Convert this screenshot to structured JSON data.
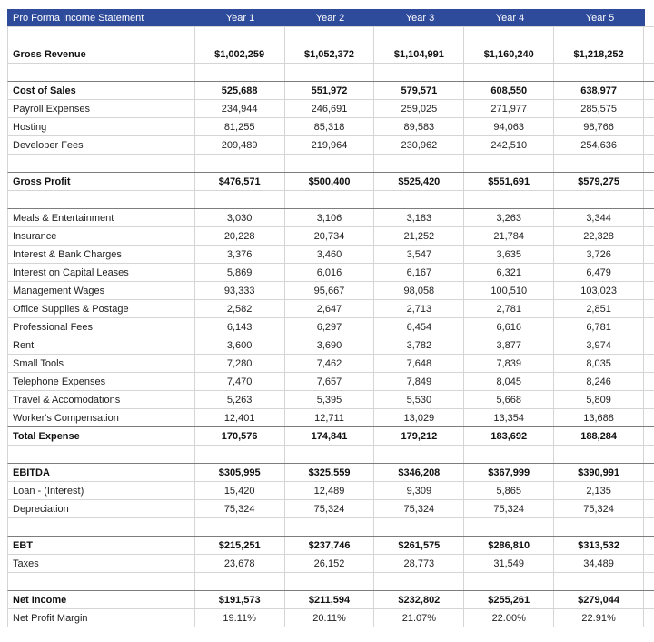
{
  "title": "Pro Forma Income Statement",
  "columns": [
    "Year 1",
    "Year 2",
    "Year 3",
    "Year 4",
    "Year 5"
  ],
  "colors": {
    "header_bg": "#2e4a9b",
    "header_text": "#ffffff",
    "grid": "#d5d5d5",
    "section_border": "#7d7d7d",
    "text": "#1f1f1f"
  },
  "rows": [
    {
      "blank": true
    },
    {
      "label": "Gross Revenue",
      "bold": true,
      "sep": true,
      "values": [
        "$1,002,259",
        "$1,052,372",
        "$1,104,991",
        "$1,160,240",
        "$1,218,252"
      ]
    },
    {
      "blank": true
    },
    {
      "label": "Cost of Sales",
      "bold": true,
      "sep": true,
      "values": [
        "525,688",
        "551,972",
        "579,571",
        "608,550",
        "638,977"
      ]
    },
    {
      "label": "Payroll Expenses",
      "values": [
        "234,944",
        "246,691",
        "259,025",
        "271,977",
        "285,575"
      ]
    },
    {
      "label": "Hosting",
      "values": [
        "81,255",
        "85,318",
        "89,583",
        "94,063",
        "98,766"
      ]
    },
    {
      "label": "Developer Fees",
      "values": [
        "209,489",
        "219,964",
        "230,962",
        "242,510",
        "254,636"
      ]
    },
    {
      "blank": true
    },
    {
      "label": "Gross Profit",
      "bold": true,
      "sep": true,
      "values": [
        "$476,571",
        "$500,400",
        "$525,420",
        "$551,691",
        "$579,275"
      ]
    },
    {
      "blank": true
    },
    {
      "label": "Meals & Entertainment",
      "sep": true,
      "values": [
        "3,030",
        "3,106",
        "3,183",
        "3,263",
        "3,344"
      ]
    },
    {
      "label": "Insurance",
      "values": [
        "20,228",
        "20,734",
        "21,252",
        "21,784",
        "22,328"
      ]
    },
    {
      "label": "Interest & Bank Charges",
      "values": [
        "3,376",
        "3,460",
        "3,547",
        "3,635",
        "3,726"
      ]
    },
    {
      "label": "Interest on Capital Leases",
      "values": [
        "5,869",
        "6,016",
        "6,167",
        "6,321",
        "6,479"
      ]
    },
    {
      "label": "Management Wages",
      "values": [
        "93,333",
        "95,667",
        "98,058",
        "100,510",
        "103,023"
      ]
    },
    {
      "label": "Office Supplies & Postage",
      "values": [
        "2,582",
        "2,647",
        "2,713",
        "2,781",
        "2,851"
      ]
    },
    {
      "label": "Professional Fees",
      "values": [
        "6,143",
        "6,297",
        "6,454",
        "6,616",
        "6,781"
      ]
    },
    {
      "label": "Rent",
      "values": [
        "3,600",
        "3,690",
        "3,782",
        "3,877",
        "3,974"
      ]
    },
    {
      "label": "Small Tools",
      "values": [
        "7,280",
        "7,462",
        "7,648",
        "7,839",
        "8,035"
      ]
    },
    {
      "label": "Telephone Expenses",
      "values": [
        "7,470",
        "7,657",
        "7,849",
        "8,045",
        "8,246"
      ]
    },
    {
      "label": "Travel & Accomodations",
      "values": [
        "5,263",
        "5,395",
        "5,530",
        "5,668",
        "5,809"
      ]
    },
    {
      "label": "Worker's Compensation",
      "values": [
        "12,401",
        "12,711",
        "13,029",
        "13,354",
        "13,688"
      ]
    },
    {
      "label": "Total Expense",
      "bold": true,
      "sep": true,
      "values": [
        "170,576",
        "174,841",
        "179,212",
        "183,692",
        "188,284"
      ]
    },
    {
      "blank": true
    },
    {
      "label": "EBITDA",
      "bold": true,
      "sep": true,
      "values": [
        "$305,995",
        "$325,559",
        "$346,208",
        "$367,999",
        "$390,991"
      ]
    },
    {
      "label": "Loan - (Interest)",
      "values": [
        "15,420",
        "12,489",
        "9,309",
        "5,865",
        "2,135"
      ]
    },
    {
      "label": "Depreciation",
      "values": [
        "75,324",
        "75,324",
        "75,324",
        "75,324",
        "75,324"
      ]
    },
    {
      "blank": true
    },
    {
      "label": "EBT",
      "bold": true,
      "sep": true,
      "values": [
        "$215,251",
        "$237,746",
        "$261,575",
        "$286,810",
        "$313,532"
      ]
    },
    {
      "label": "Taxes",
      "values": [
        "23,678",
        "26,152",
        "28,773",
        "31,549",
        "34,489"
      ]
    },
    {
      "blank": true
    },
    {
      "label": "Net Income",
      "bold": true,
      "sep": true,
      "values": [
        "$191,573",
        "$211,594",
        "$232,802",
        "$255,261",
        "$279,044"
      ]
    },
    {
      "label": "Net Profit Margin",
      "values": [
        "19.11%",
        "20.11%",
        "21.07%",
        "22.00%",
        "22.91%"
      ]
    }
  ]
}
